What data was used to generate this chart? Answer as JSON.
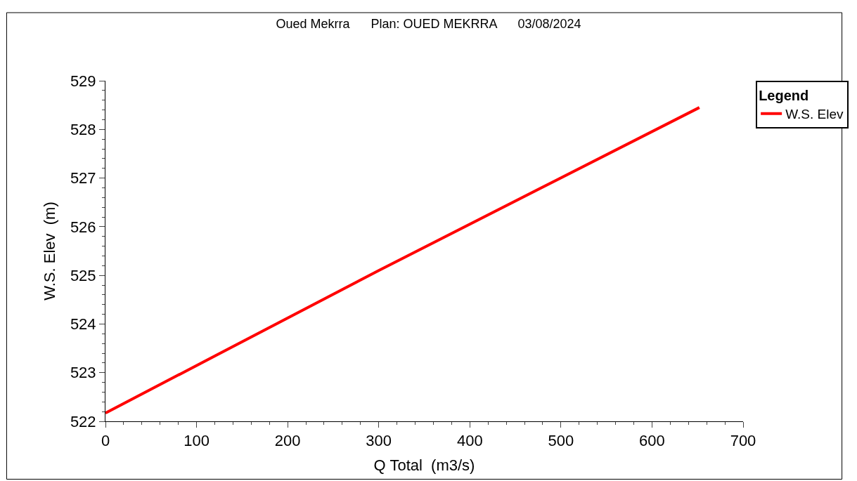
{
  "chart_data": {
    "type": "line",
    "title": "Oued Mekrra      Plan: OUED MEKRRA      03/08/2024",
    "xlabel": "Q Total  (m3/s)",
    "ylabel": "W.S. Elev  (m)",
    "legend_title": "Legend",
    "x": [
      0,
      300,
      652
    ],
    "series": [
      {
        "name": "W.S. Elev",
        "color": "#ff0000",
        "values": [
          522.17,
          525.1,
          528.45
        ]
      }
    ],
    "xlim": [
      0,
      700
    ],
    "xticks": [
      0,
      100,
      200,
      300,
      400,
      500,
      600,
      700
    ],
    "ylim": [
      522,
      529
    ],
    "yticks": [
      522,
      523,
      524,
      525,
      526,
      527,
      528,
      529
    ],
    "legend": "top right",
    "marker": "none",
    "line_style": "solid"
  }
}
